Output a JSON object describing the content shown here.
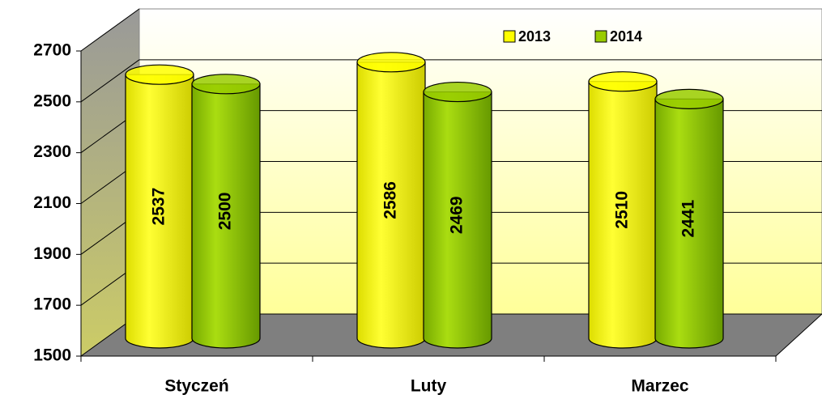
{
  "chart_data": {
    "type": "bar3d",
    "categories": [
      "Styczeń",
      "Luty",
      "Marzec"
    ],
    "series": [
      {
        "name": "2013",
        "color": "#ffff00",
        "values": [
          2537,
          2586,
          2510
        ]
      },
      {
        "name": "2014",
        "color": "#99cc00",
        "values": [
          2500,
          2469,
          2441
        ]
      }
    ],
    "ylim": [
      1500,
      2700
    ],
    "yticks": [
      1500,
      1700,
      1900,
      2100,
      2300,
      2500,
      2700
    ],
    "grid": true,
    "legend": "top-right"
  }
}
